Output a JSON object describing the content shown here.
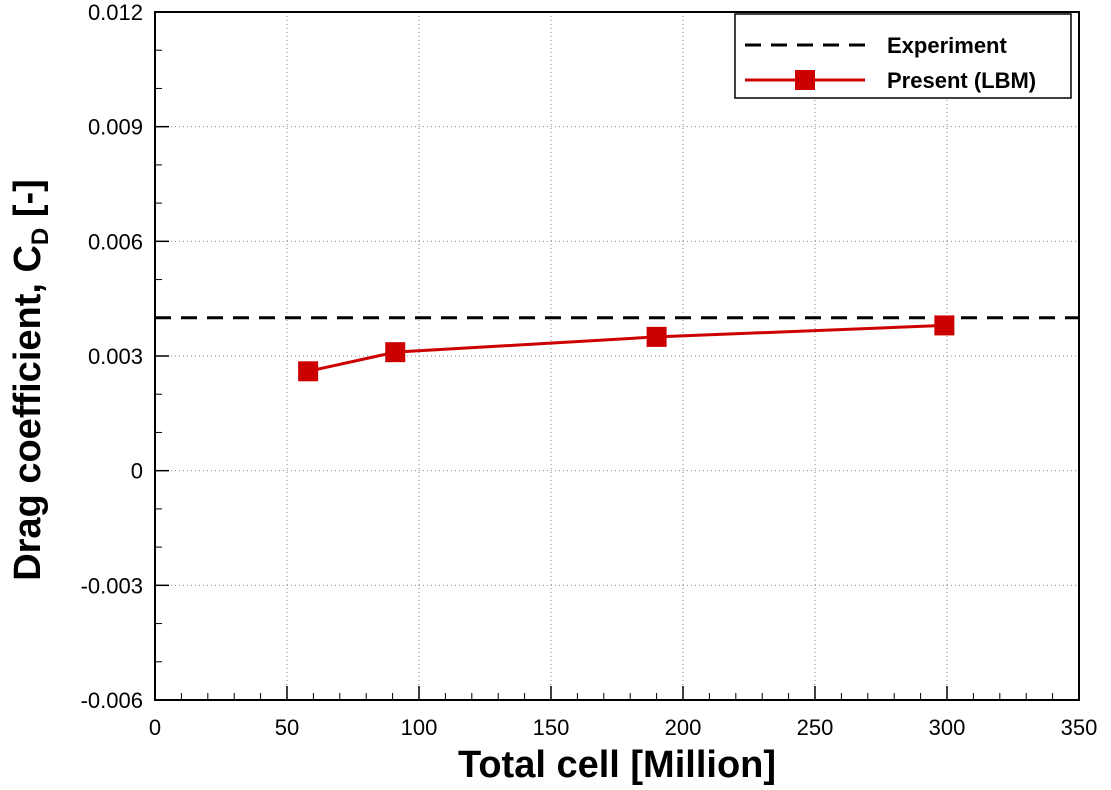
{
  "chart_data": {
    "type": "line",
    "xlabel": "Total cell [Million]",
    "ylabel_main": "Drag coefficient, C",
    "ylabel_sub": "D",
    "ylabel_suffix": " [-]",
    "xlim": [
      0,
      350
    ],
    "ylim": [
      -0.006,
      0.012
    ],
    "x_ticks": [
      0,
      50,
      100,
      150,
      200,
      250,
      300,
      350
    ],
    "x_tick_labels": [
      "0",
      "50",
      "100",
      "150",
      "200",
      "250",
      "300",
      "350"
    ],
    "y_ticks": [
      -0.006,
      -0.003,
      0,
      0.003,
      0.006,
      0.009,
      0.012
    ],
    "y_tick_labels": [
      "-0.006",
      "-0.003",
      "0",
      "0.003",
      "0.006",
      "0.009",
      "0.012"
    ],
    "grid": true,
    "legend_position": "top-right",
    "series": [
      {
        "name": "Experiment",
        "style": "dashed",
        "color": "#000000",
        "x": [
          0,
          350
        ],
        "y": [
          0.004,
          0.004
        ]
      },
      {
        "name": "Present (LBM)",
        "style": "solid-square-markers",
        "color": "#cc0000",
        "x": [
          58,
          91,
          190,
          299
        ],
        "y": [
          0.0026,
          0.0031,
          0.0035,
          0.0038
        ]
      }
    ]
  }
}
